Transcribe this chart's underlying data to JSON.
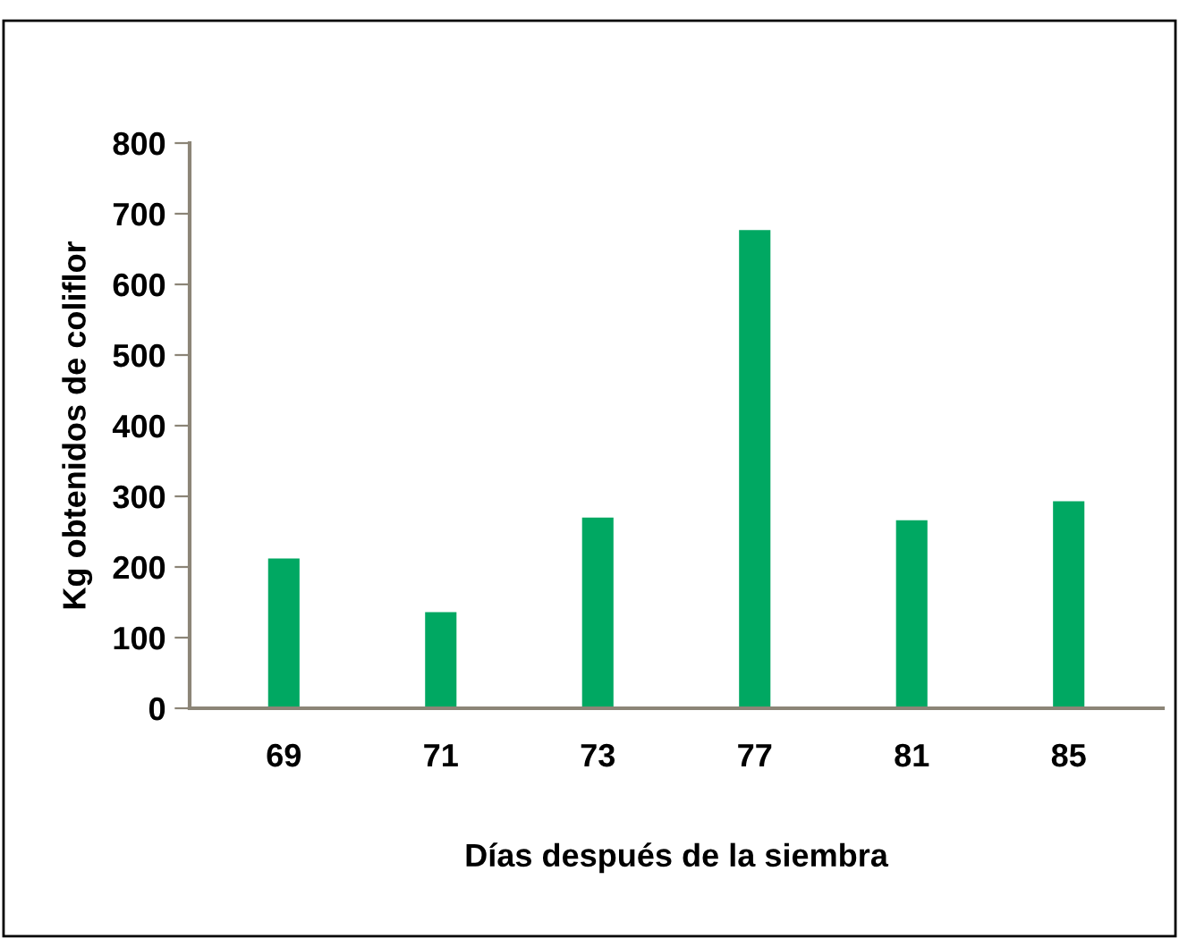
{
  "chart_data": {
    "type": "bar",
    "xlabel": "Días después de la siembra",
    "ylabel": "Kg obtenidos de coliflor",
    "categories": [
      "69",
      "71",
      "73",
      "77",
      "81",
      "85"
    ],
    "values": [
      212,
      136,
      270,
      677,
      266,
      293
    ],
    "color": "#00a862",
    "ylim": [
      0,
      800
    ],
    "yticks": [
      0,
      100,
      200,
      300,
      400,
      500,
      600,
      700,
      800
    ],
    "grid": false,
    "legend": false
  }
}
